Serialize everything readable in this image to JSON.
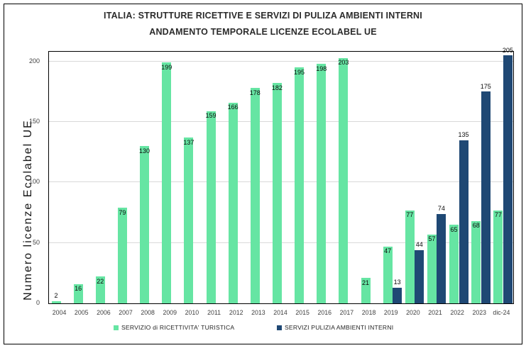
{
  "title": {
    "line1": "ITALIA:  STRUTTURE RICETTIVE E SERVIZI DI PULIZA AMBIENTI INTERNI",
    "line2": "ANDAMENTO TEMPORALE LICENZE ECOLABEL UE"
  },
  "chart_data": {
    "type": "bar",
    "title": "ITALIA: STRUTTURE RICETTIVE E SERVIZI DI PULIZA AMBIENTI INTERNI - ANDAMENTO TEMPORALE LICENZE ECOLABEL UE",
    "xlabel": "",
    "ylabel": "Numero licenze Ecolabel UE",
    "categories": [
      "2004",
      "2005",
      "2006",
      "2007",
      "2008",
      "2009",
      "2010",
      "2011",
      "2012",
      "2013",
      "2014",
      "2015",
      "2016",
      "2017",
      "2018",
      "2019",
      "2020",
      "2021",
      "2022",
      "2023",
      "dic-24"
    ],
    "series": [
      {
        "name": "SERVIZIO di RICETTIVITA' TURISTICA",
        "color": "#66E5A3",
        "label_placement": "inside-end",
        "values": [
          2,
          16,
          22,
          79,
          130,
          199,
          137,
          159,
          166,
          178,
          182,
          195,
          198,
          203,
          21,
          47,
          77,
          57,
          65,
          68,
          77
        ]
      },
      {
        "name": "SERVIZI PULIZIA AMBIENTI INTERNI",
        "color": "#1F4874",
        "label_placement": "outside-end",
        "values": [
          null,
          null,
          null,
          null,
          null,
          null,
          null,
          null,
          null,
          null,
          null,
          null,
          null,
          null,
          null,
          13,
          44,
          74,
          135,
          175,
          205
        ]
      }
    ],
    "ylim": [
      0,
      208
    ],
    "yticks": [
      0,
      50,
      100,
      150,
      200
    ],
    "grid": true,
    "gridline_color": "#D9D9D9",
    "legend_position": "bottom"
  }
}
